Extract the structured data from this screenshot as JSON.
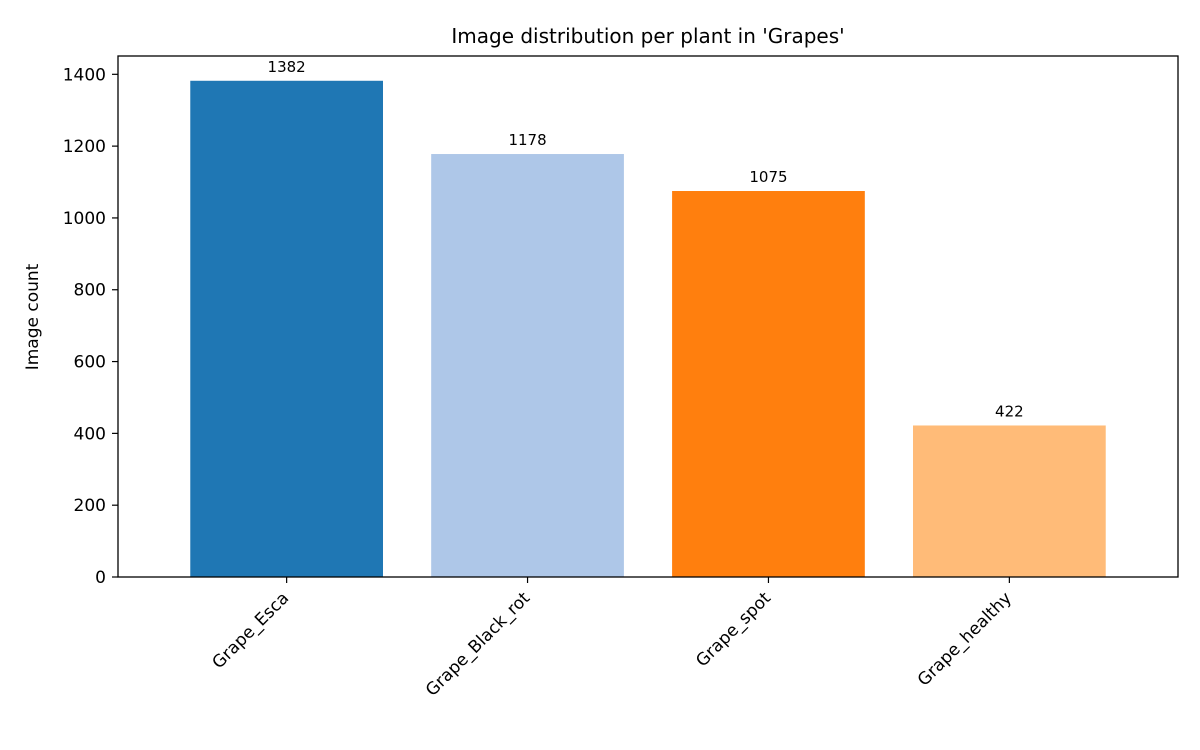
{
  "chart_data": {
    "type": "bar",
    "title": "Image distribution per plant in 'Grapes'",
    "xlabel": "",
    "ylabel": "Image count",
    "categories": [
      "Grape_Esca",
      "Grape_Black_rot",
      "Grape_spot",
      "Grape_healthy"
    ],
    "values": [
      1382,
      1178,
      1075,
      422
    ],
    "value_labels": [
      "1382",
      "1178",
      "1075",
      "422"
    ],
    "colors": [
      "#1f77b4",
      "#aec7e8",
      "#ff7f0e",
      "#ffbb78"
    ],
    "ylim": [
      0,
      1451
    ],
    "yticks": [
      0,
      200,
      400,
      600,
      800,
      1000,
      1200,
      1400
    ],
    "ytick_labels": [
      "0",
      "200",
      "400",
      "600",
      "800",
      "1000",
      "1200",
      "1400"
    ],
    "grid": false,
    "legend": "none"
  }
}
